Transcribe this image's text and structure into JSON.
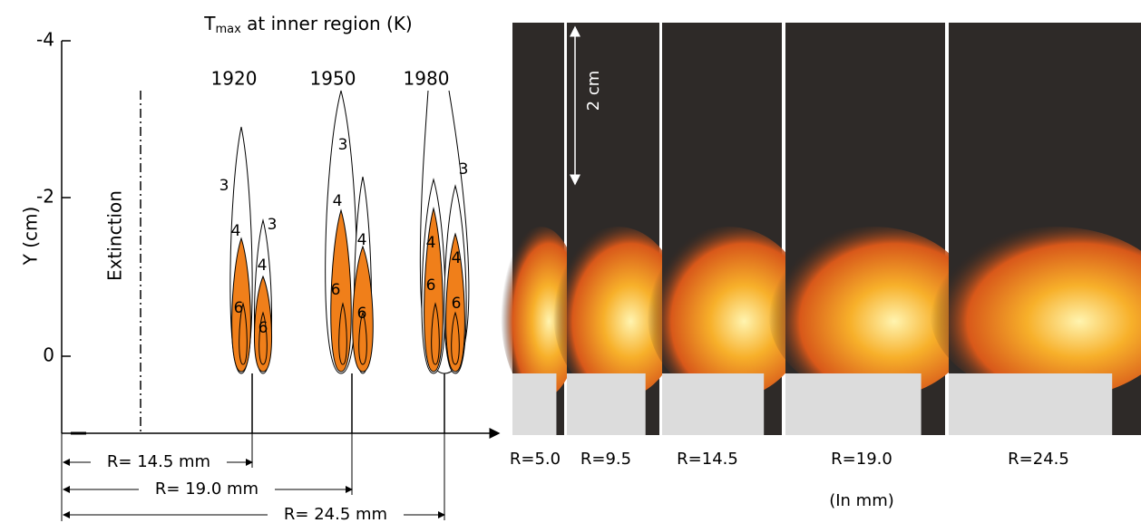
{
  "title": {
    "symbol": "T",
    "subscript": "max",
    "rest": " at inner region (K)"
  },
  "y_axis": {
    "label": "Y (cm)",
    "ticks": [
      "-4",
      "-2",
      "0"
    ]
  },
  "extinction": "Extinction",
  "flames": [
    {
      "temperature": "1920",
      "contours": [
        "3",
        "4",
        "3",
        "4",
        "6",
        "6"
      ]
    },
    {
      "temperature": "1950",
      "contours": [
        "3",
        "4",
        "4",
        "6",
        "6"
      ]
    },
    {
      "temperature": "1980",
      "contours": [
        "3",
        "4",
        "4",
        "6",
        "6"
      ]
    }
  ],
  "dimensions": [
    "R= 14.5 mm",
    "R= 19.0 mm",
    "R= 24.5 mm"
  ],
  "photos": {
    "scale_bar": "2 cm",
    "labels": [
      "R=5.0",
      "R=9.5",
      "R=14.5",
      "R=19.0",
      "R=24.5"
    ],
    "unit_note": "(In mm)"
  }
}
